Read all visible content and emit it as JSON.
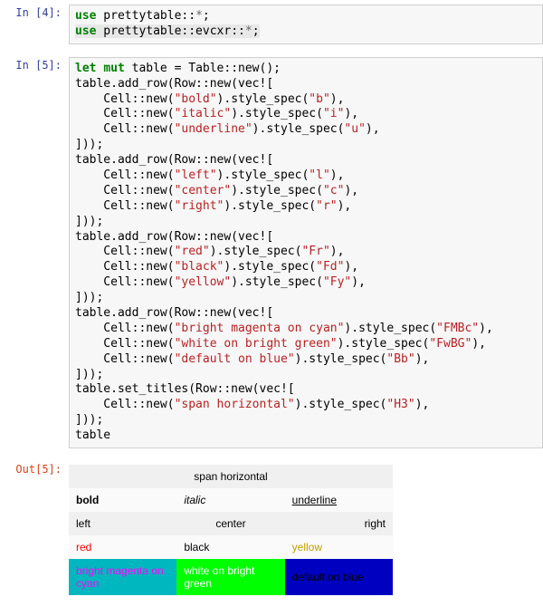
{
  "prompts": {
    "in4": "In [4]:",
    "in5": "In [5]:",
    "out5": "Out[5]:"
  },
  "code4": {
    "kw_use1": "use",
    "ns1": " prettytable::",
    "star1": "*",
    "semi1": ";",
    "kw_use2": "use",
    "ns2": " prettytable::evcxr::",
    "star2": "*",
    "semi2": ";"
  },
  "code5": {
    "l0_let": "let",
    "l0_mut": "mut",
    "l0_rest": " table = Table::new();",
    "row1_open": "table.add_row(Row::new(",
    "vec": "vec!",
    "bracket_open": "[",
    "cell_new": "    Cell::new(",
    "style_spec": ").style_spec(",
    "line_end": "),",
    "row_close": "]));",
    "set_titles": "table.set_titles(Row::new(",
    "last": "table",
    "strings": {
      "bold": "\"bold\"",
      "b": "\"b\"",
      "italic": "\"italic\"",
      "i": "\"i\"",
      "underline": "\"underline\"",
      "u": "\"u\"",
      "left": "\"left\"",
      "l": "\"l\"",
      "center": "\"center\"",
      "c": "\"c\"",
      "right": "\"right\"",
      "r": "\"r\"",
      "red": "\"red\"",
      "Fr": "\"Fr\"",
      "black": "\"black\"",
      "Fd": "\"Fd\"",
      "yellow": "\"yellow\"",
      "Fy": "\"Fy\"",
      "bmocyan": "\"bright magenta on cyan\"",
      "FMBc": "\"FMBc\"",
      "wobg": "\"white on bright green\"",
      "FwBG": "\"FwBG\"",
      "dob": "\"default on blue\"",
      "Bb": "\"Bb\"",
      "span_h": "\"span horizontal\"",
      "H3": "\"H3\""
    }
  },
  "output_table": {
    "title": "span horizontal",
    "rows": [
      {
        "cells": [
          {
            "text": "bold",
            "style": "font-weight:bold",
            "align": "left"
          },
          {
            "text": "italic",
            "style": "font-style:italic",
            "align": "left"
          },
          {
            "text": "underline",
            "style": "text-decoration:underline",
            "align": "left"
          }
        ],
        "cls": "rowa"
      },
      {
        "cells": [
          {
            "text": "left",
            "style": "",
            "align": "left"
          },
          {
            "text": "center",
            "style": "",
            "align": "center"
          },
          {
            "text": "right",
            "style": "",
            "align": "right"
          }
        ],
        "cls": "rowb"
      },
      {
        "cells": [
          {
            "text": "red",
            "style": "color:#ff0000",
            "align": "left"
          },
          {
            "text": "black",
            "style": "color:#000000",
            "align": "left"
          },
          {
            "text": "yellow",
            "style": "color:#c0a000",
            "align": "left"
          }
        ],
        "cls": "rowa"
      },
      {
        "cells": [
          {
            "text": "bright magenta on cyan",
            "style": "color:#ff00ff;background:#00b7bf",
            "align": "left"
          },
          {
            "text": "white on bright green",
            "style": "color:#ffffff;background:#00ff00",
            "align": "left"
          },
          {
            "text": "default on blue",
            "style": "color:#000;background:#0000c0",
            "align": "left"
          }
        ],
        "cls": "rowcolor"
      }
    ]
  }
}
